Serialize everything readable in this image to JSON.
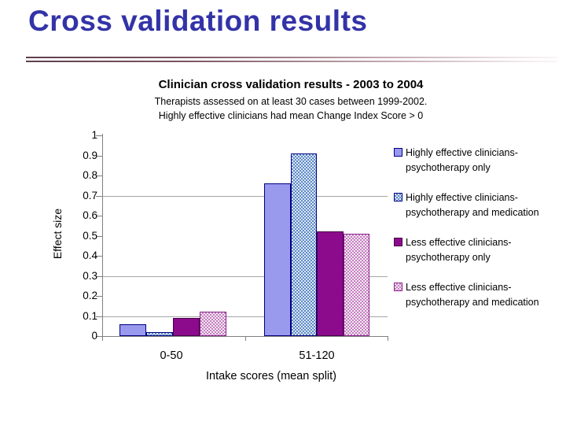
{
  "slide": {
    "title": "Cross validation results"
  },
  "chart_data": {
    "type": "bar",
    "title": "Clinician cross validation results - 2003 to 2004",
    "subtitle1": "Therapists assessed on at least 30 cases between 1999-2002.",
    "subtitle2": "Highly effective clinicians had mean Change Index Score > 0",
    "categories": [
      "0-50",
      "51-120"
    ],
    "series": [
      {
        "name": "Highly effective clinicians-psychotherapy only",
        "values": [
          0.06,
          0.76
        ]
      },
      {
        "name": "Highly effective clinicians-psychotherapy and medication",
        "values": [
          0.02,
          0.91
        ]
      },
      {
        "name": "Less effective clinicians-psychotherapy only",
        "values": [
          0.09,
          0.52
        ]
      },
      {
        "name": "Less effective clinicians-psychotherapy and medication",
        "values": [
          0.12,
          0.51
        ]
      }
    ],
    "legend": [
      {
        "line1": "Highly effective clinicians-",
        "line2": "psychotherapy only"
      },
      {
        "line1": "Highly effective clinicians-",
        "line2": "psychotherapy and medication"
      },
      {
        "line1": "Less effective clinicians-",
        "line2": "psychotherapy only"
      },
      {
        "line1": "Less effective clinicians-",
        "line2": "psychotherapy and medication"
      }
    ],
    "xlabel": "Intake scores (mean split)",
    "ylabel": "Effect size",
    "ylim": [
      0,
      1
    ],
    "ytick_step": 0.1,
    "gridlines_at": [
      0.1,
      0.3,
      0.7
    ],
    "legend_position": "right",
    "grid": "partial-horizontal"
  },
  "colors": {
    "title_blue": "#3333A8",
    "rule_maroon": "#5E3F4D",
    "bar1_fill": "#9999EE",
    "bar1_border": "#000080",
    "bar2_bg": "#DCE6F5",
    "bar2_dot": "#5E8BC8",
    "bar2_border": "#000080",
    "bar3_fill": "#8C0A8C",
    "bar3_border": "#470047",
    "bar4_bg": "#F3EAF3",
    "bar4_dot": "#C77EC2",
    "bar4_border": "#8B1F8B",
    "gridline": "#A6A6A6",
    "axis": "#808080",
    "text": "#000000"
  }
}
